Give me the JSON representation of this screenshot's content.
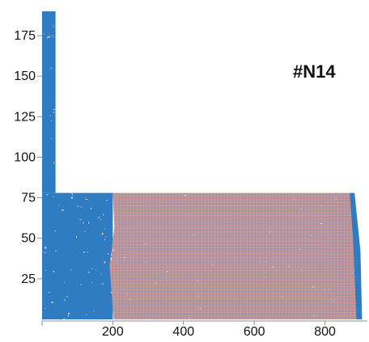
{
  "chart_data": {
    "type": "heatmap",
    "title": "#N14",
    "xlabel": "",
    "ylabel": "",
    "xlim": [
      0,
      920
    ],
    "ylim": [
      0,
      190
    ],
    "x_ticks": [
      {
        "value": 200,
        "label": "200"
      },
      {
        "value": 400,
        "label": "400"
      },
      {
        "value": 600,
        "label": "600"
      },
      {
        "value": 800,
        "label": "800"
      }
    ],
    "y_ticks": [
      {
        "value": 25,
        "label": "25"
      },
      {
        "value": 50,
        "label": "50"
      },
      {
        "value": 75,
        "label": "75"
      },
      {
        "value": 100,
        "label": "100"
      },
      {
        "value": 125,
        "label": "125"
      },
      {
        "value": 150,
        "label": "150"
      },
      {
        "value": 175,
        "label": "175"
      }
    ],
    "regions": [
      {
        "name": "blue-upper-column",
        "x_start": 0,
        "x_end": 38,
        "y_start": 78,
        "y_end": 190,
        "color": "#2f7cc2"
      },
      {
        "name": "blue-base-block",
        "x_start": 0,
        "x_end": 200,
        "y_start": 0,
        "y_end": 78,
        "color": "#2f7cc2"
      },
      {
        "name": "red-band",
        "x_start": 200,
        "x_end": 870,
        "y_start": 0,
        "y_end": 78,
        "color": "#c98d8a"
      },
      {
        "name": "blue-right-edge",
        "x_start": 870,
        "x_end": 905,
        "y_start": 0,
        "y_end": 78,
        "color": "#2f7cc2"
      }
    ]
  }
}
